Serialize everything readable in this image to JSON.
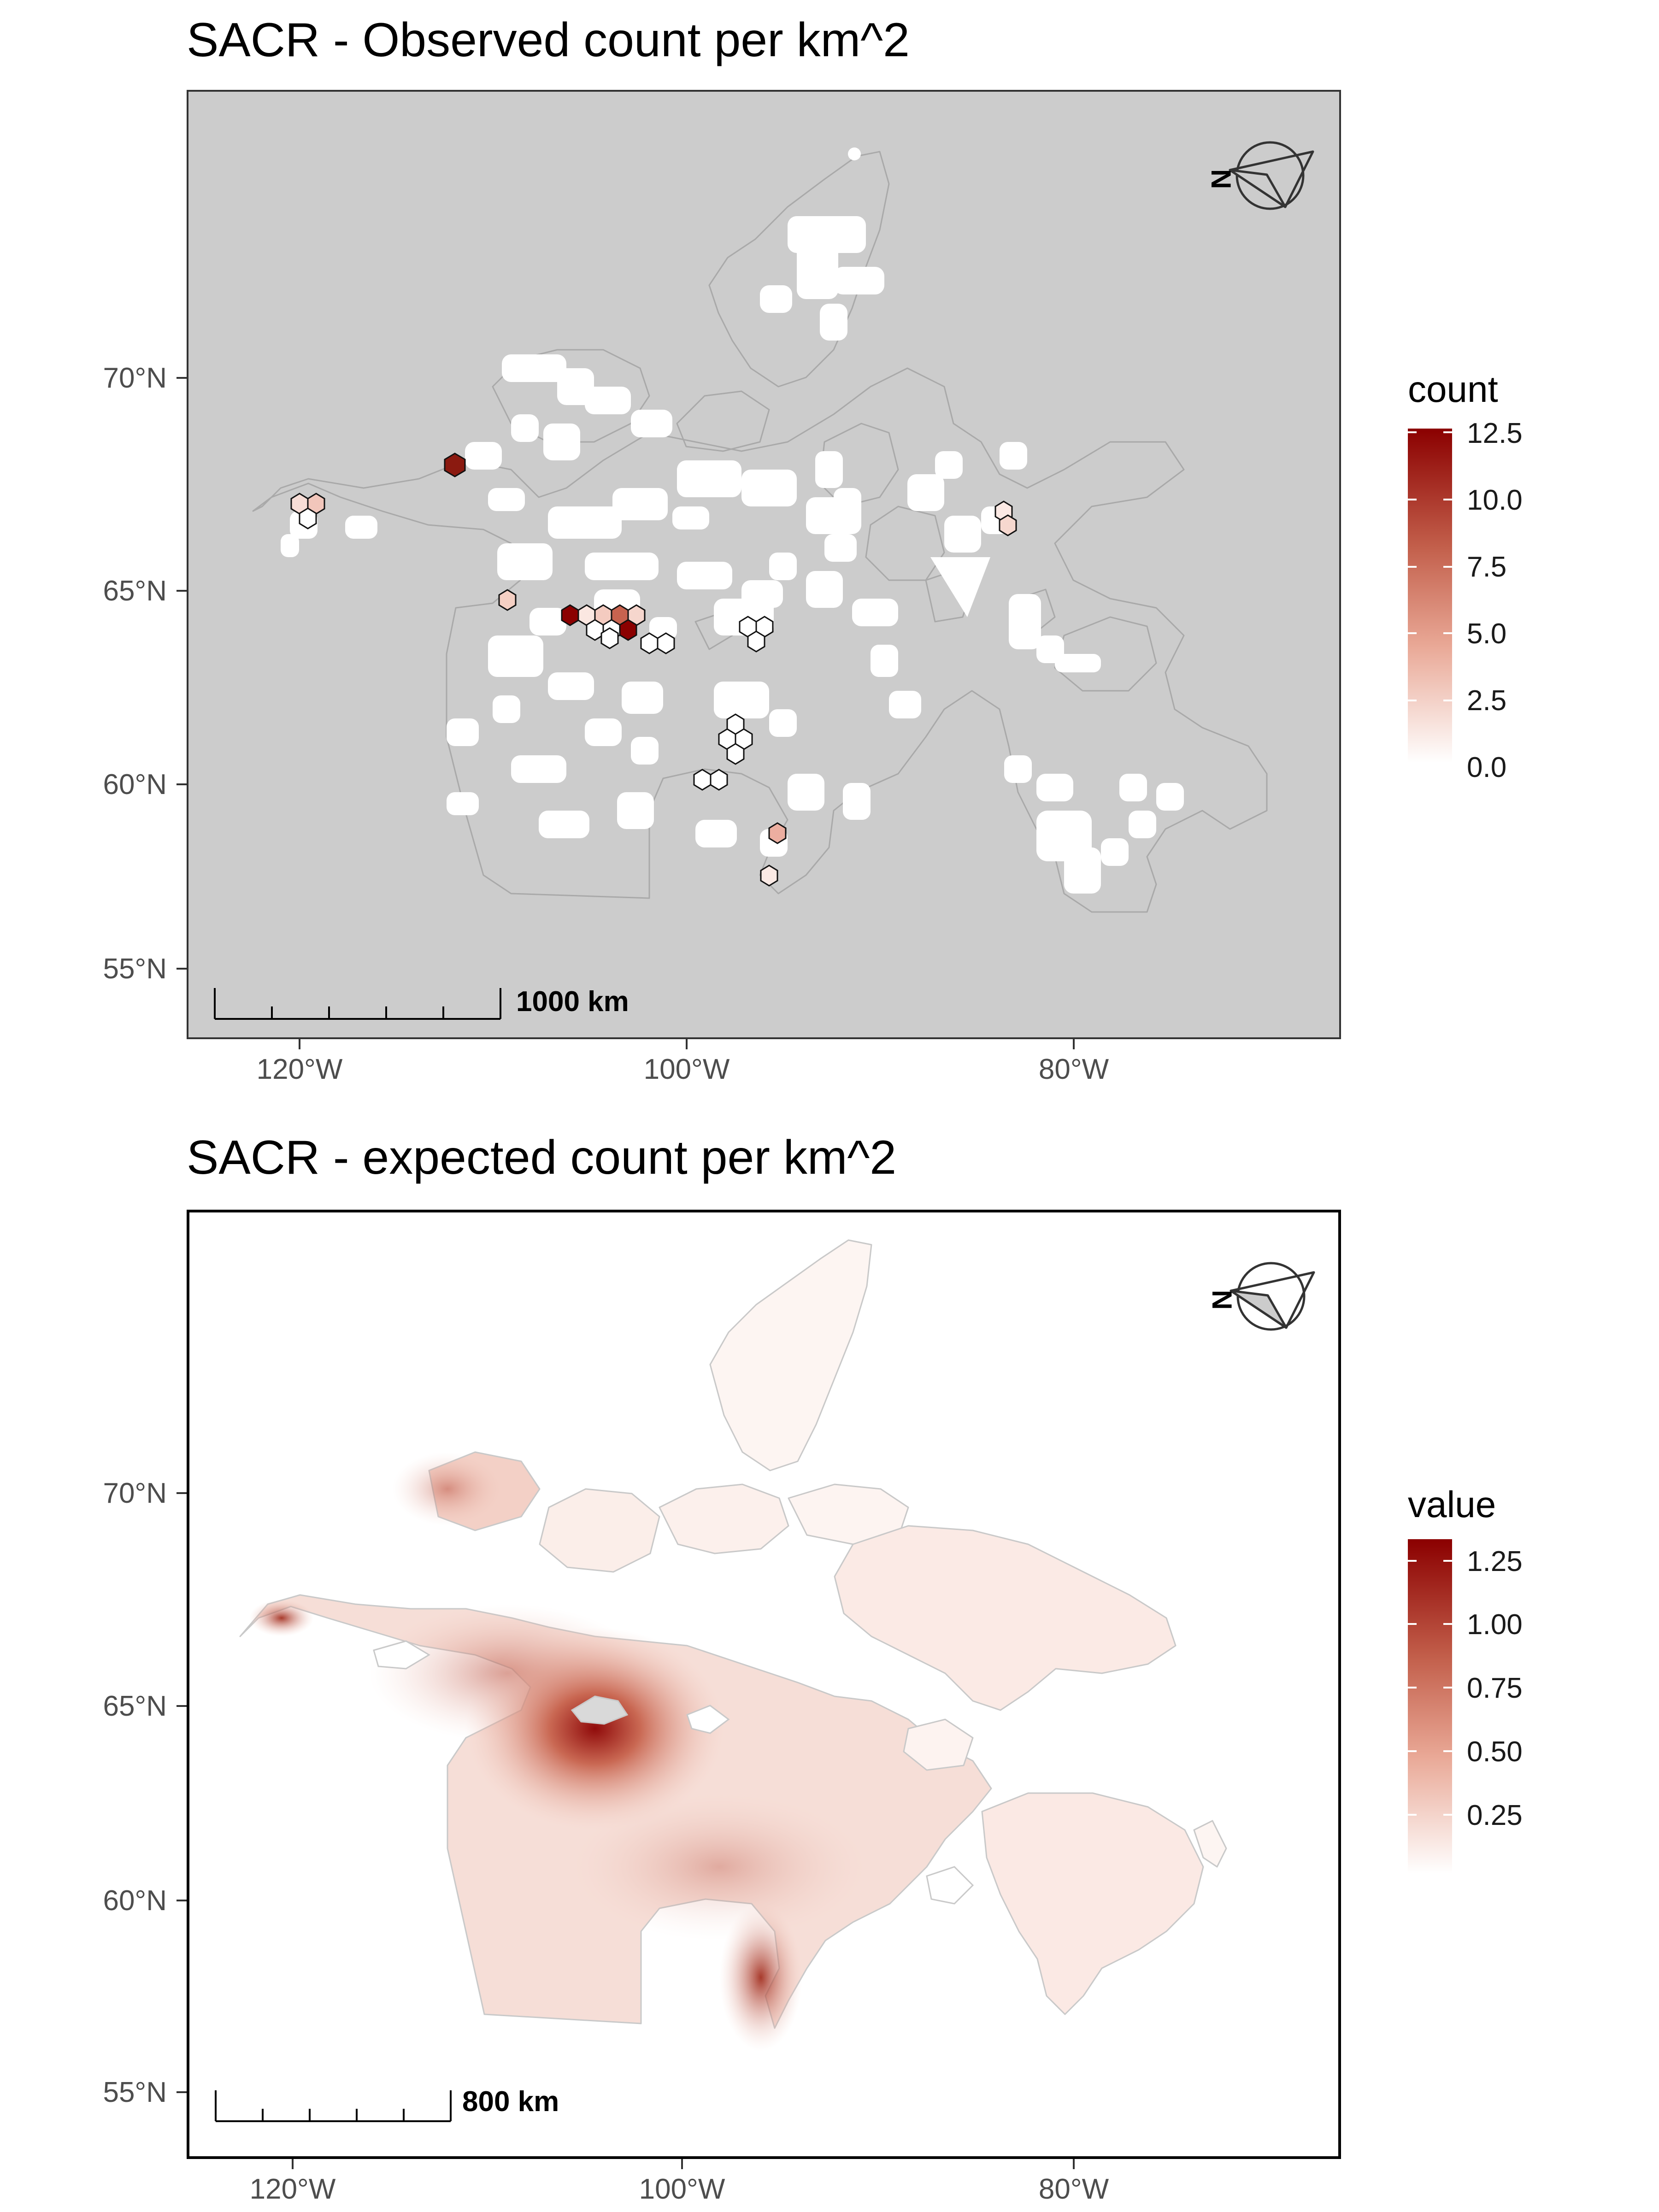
{
  "panels": [
    {
      "title": "SACR - Observed count per km^2",
      "background": "#cccccc",
      "legend": {
        "title": "count",
        "labels": [
          "12.5",
          "10.0",
          "7.5",
          "5.0",
          "2.5",
          "0.0"
        ]
      },
      "y_labels": [
        "70°N",
        "65°N",
        "60°N",
        "55°N"
      ],
      "x_labels": [
        "120°W",
        "100°W",
        "80°W"
      ],
      "scale_bar": "1000 km",
      "north_arrow_label": "N"
    },
    {
      "title": "SACR - expected count per km^2",
      "background": "#ffffff",
      "legend": {
        "title": "value",
        "labels": [
          "1.25",
          "1.00",
          "0.75",
          "0.50",
          "0.25"
        ]
      },
      "y_labels": [
        "70°N",
        "65°N",
        "60°N",
        "55°N"
      ],
      "x_labels": [
        "120°W",
        "100°W",
        "80°W"
      ],
      "scale_bar": "800 km",
      "north_arrow_label": "N"
    }
  ],
  "colors": {
    "low": "#ffffff",
    "high": "#8b0000",
    "land_outline": "#b3b3b3"
  },
  "icons": [
    "north-arrow-icon",
    "compass-icon"
  ]
}
